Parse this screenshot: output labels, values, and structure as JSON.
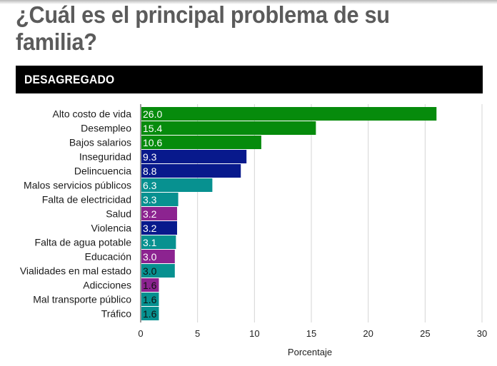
{
  "page": {
    "title": "¿Cuál es el principal problema de su familia?",
    "section_label": "DESAGREGADO"
  },
  "colors": {
    "economic": "#068b0c",
    "security": "#08198c",
    "services": "#079190",
    "social": "#8c2390"
  },
  "chart_data": {
    "type": "bar",
    "orientation": "horizontal",
    "title": "¿Cuál es el principal problema de su familia?",
    "subtitle": "DESAGREGADO",
    "xlabel": "Porcentaje",
    "ylabel": "",
    "xlim": [
      0,
      30
    ],
    "xticks": [
      0,
      5,
      10,
      15,
      20,
      25,
      30
    ],
    "grid": true,
    "legend": "none",
    "categories": [
      "Alto costo de vida",
      "Desempleo",
      "Bajos salarios",
      "Inseguridad",
      "Delincuencia",
      "Malos servicios públicos",
      "Falta de electricidad",
      "Salud",
      "Violencia",
      "Falta de agua potable",
      "Educación",
      "Vialidades en mal estado",
      "Adicciones",
      "Mal transporte público",
      "Tráfico"
    ],
    "values": [
      26.0,
      15.4,
      10.6,
      9.3,
      8.8,
      6.3,
      3.3,
      3.2,
      3.2,
      3.1,
      3.0,
      3.0,
      1.6,
      1.6,
      1.6
    ],
    "value_labels": [
      "26.0",
      "15.4",
      "10.6",
      "9.3",
      "8.8",
      "6.3",
      "3.3",
      "3.2",
      "3.2",
      "3.1",
      "3.0",
      "3.0",
      "1.6",
      "1.6",
      "1.6"
    ],
    "groups": [
      "economic",
      "economic",
      "economic",
      "security",
      "security",
      "services",
      "services",
      "social",
      "security",
      "services",
      "social",
      "services",
      "social",
      "services",
      "services"
    ],
    "label_colors": [
      "#ffffff",
      "#ffffff",
      "#ffffff",
      "#ffffff",
      "#ffffff",
      "#ffffff",
      "#ffffff",
      "#ffffff",
      "#ffffff",
      "#ffffff",
      "#ffffff",
      "#111111",
      "#111111",
      "#111111",
      "#111111"
    ]
  }
}
